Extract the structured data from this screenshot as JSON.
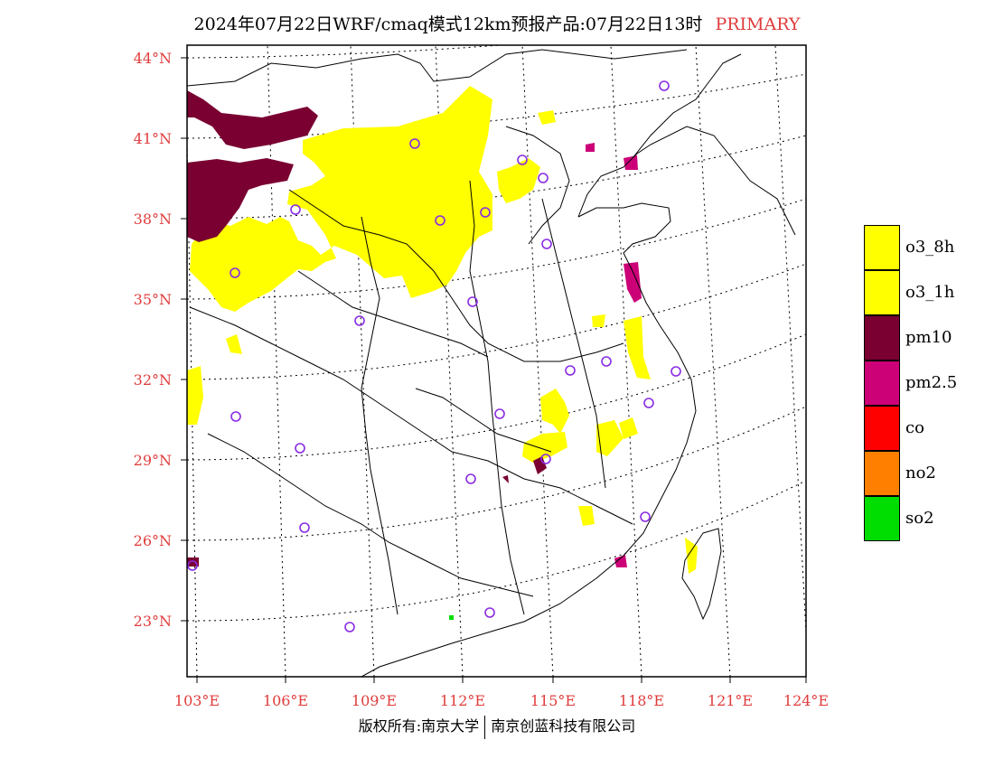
{
  "title": {
    "main": "2024年07月22日WRF/cmaq模式12km预报产品:07月22日13时",
    "tag": "PRIMARY"
  },
  "colors": {
    "o3_8h": "#ffff00",
    "o3_1h": "#ffff00",
    "pm10": "#7a0032",
    "pm2_5": "#cc0077",
    "co": "#ff0000",
    "no2": "#ff7f00",
    "so2": "#00dd00",
    "axis_label": "#e03c3c",
    "station_marker": "#8a2be2"
  },
  "legend": [
    {
      "key": "o3_8h",
      "label": "o3_8h",
      "color": "#ffff00"
    },
    {
      "key": "o3_1h",
      "label": "o3_1h",
      "color": "#ffff00"
    },
    {
      "key": "pm10",
      "label": "pm10",
      "color": "#7a0032"
    },
    {
      "key": "pm2_5",
      "label": "pm2.5",
      "color": "#cc0077"
    },
    {
      "key": "co",
      "label": "co",
      "color": "#ff0000"
    },
    {
      "key": "no2",
      "label": "no2",
      "color": "#ff7f00"
    },
    {
      "key": "so2",
      "label": "so2",
      "color": "#00dd00"
    }
  ],
  "lat_labels": [
    "44°N",
    "41°N",
    "38°N",
    "35°N",
    "32°N",
    "29°N",
    "26°N",
    "23°N"
  ],
  "lon_labels": [
    "103°E",
    "106°E",
    "109°E",
    "112°E",
    "115°E",
    "118°E",
    "121°E",
    "124°E"
  ],
  "copyright": {
    "left": "版权所有:南京大学",
    "right": "南京创蓝科技有限公司"
  }
}
